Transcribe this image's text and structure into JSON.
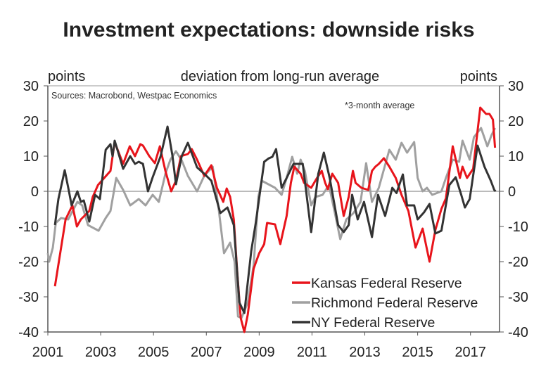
{
  "chart_data": {
    "type": "line",
    "title": "Investment expectations: downside risks",
    "ylabel_left": "points",
    "ylabel_center": "deviation from long-run average",
    "ylabel_right": "points",
    "source": "Sources: Macrobond, Westpac Economics",
    "annotation": "*3-month average",
    "xlim": [
      2001,
      2018.1
    ],
    "ylim": [
      -40,
      30
    ],
    "x_ticks": [
      2001,
      2003,
      2005,
      2007,
      2009,
      2011,
      2013,
      2015,
      2017
    ],
    "y_ticks": [
      30,
      20,
      10,
      0,
      -10,
      -20,
      -30,
      -40
    ],
    "legend_position": "bottom-right",
    "series": [
      {
        "name": "Kansas Federal Reserve",
        "color": "#e8141b",
        "points": [
          [
            2001.27,
            -27
          ],
          [
            2001.67,
            -8
          ],
          [
            2001.93,
            -4
          ],
          [
            2002.1,
            -10
          ],
          [
            2002.25,
            -8
          ],
          [
            2002.57,
            -5.6
          ],
          [
            2002.7,
            -1.6
          ],
          [
            2002.9,
            1.8
          ],
          [
            2003.37,
            5.8
          ],
          [
            2003.53,
            14
          ],
          [
            2003.85,
            7.8
          ],
          [
            2004.1,
            12.8
          ],
          [
            2004.3,
            10
          ],
          [
            2004.5,
            13.4
          ],
          [
            2004.6,
            13
          ],
          [
            2004.84,
            10
          ],
          [
            2005.05,
            8
          ],
          [
            2005.24,
            12.8
          ],
          [
            2005.45,
            5.8
          ],
          [
            2005.67,
            0
          ],
          [
            2005.85,
            3
          ],
          [
            2006.04,
            10
          ],
          [
            2006.3,
            10.6
          ],
          [
            2006.45,
            12
          ],
          [
            2006.65,
            9
          ],
          [
            2006.92,
            4.4
          ],
          [
            2007.19,
            7.4
          ],
          [
            2007.4,
            1
          ],
          [
            2007.64,
            -3
          ],
          [
            2007.77,
            0.8
          ],
          [
            2007.9,
            -1.6
          ],
          [
            2008.04,
            -8
          ],
          [
            2008.17,
            -23
          ],
          [
            2008.3,
            -36
          ],
          [
            2008.44,
            -40
          ],
          [
            2008.57,
            -35
          ],
          [
            2008.79,
            -22
          ],
          [
            2009.0,
            -17.6
          ],
          [
            2009.19,
            -15
          ],
          [
            2009.3,
            -9
          ],
          [
            2009.6,
            -9.4
          ],
          [
            2009.8,
            -15
          ],
          [
            2010.04,
            -7
          ],
          [
            2010.2,
            2.4
          ],
          [
            2010.33,
            7
          ],
          [
            2010.57,
            5
          ],
          [
            2010.7,
            2.4
          ],
          [
            2010.97,
            1
          ],
          [
            2011.19,
            3.8
          ],
          [
            2011.37,
            5.8
          ],
          [
            2011.5,
            2.4
          ],
          [
            2011.6,
            0.6
          ],
          [
            2011.77,
            5
          ],
          [
            2011.99,
            2.4
          ],
          [
            2012.2,
            -7
          ],
          [
            2012.39,
            -1.6
          ],
          [
            2012.55,
            5.8
          ],
          [
            2012.65,
            2.4
          ],
          [
            2012.87,
            1
          ],
          [
            2013.13,
            0.4
          ],
          [
            2013.27,
            5.8
          ],
          [
            2013.4,
            7
          ],
          [
            2013.53,
            7.8
          ],
          [
            2013.72,
            9.4
          ],
          [
            2013.93,
            7
          ],
          [
            2014.17,
            3.8
          ],
          [
            2014.39,
            -1
          ],
          [
            2014.65,
            -5.6
          ],
          [
            2014.92,
            -16
          ],
          [
            2015.19,
            -10.6
          ],
          [
            2015.45,
            -20
          ],
          [
            2015.67,
            -11
          ],
          [
            2015.9,
            -5
          ],
          [
            2016.07,
            -2
          ],
          [
            2016.33,
            12.8
          ],
          [
            2016.6,
            3.8
          ],
          [
            2016.7,
            7
          ],
          [
            2016.87,
            3.8
          ],
          [
            2017.1,
            6.4
          ],
          [
            2017.37,
            23.8
          ],
          [
            2017.59,
            22
          ],
          [
            2017.72,
            22
          ],
          [
            2017.85,
            20.4
          ],
          [
            2017.93,
            12.4
          ]
        ]
      },
      {
        "name": "Richmond Federal Reserve",
        "color": "#a0a0a0",
        "points": [
          [
            2001.0,
            -17.6
          ],
          [
            2001.05,
            -20
          ],
          [
            2001.19,
            -16
          ],
          [
            2001.3,
            -9
          ],
          [
            2001.5,
            -7.6
          ],
          [
            2001.77,
            -8
          ],
          [
            2002.12,
            -3
          ],
          [
            2002.3,
            -4
          ],
          [
            2002.52,
            -9.6
          ],
          [
            2002.92,
            -11.2
          ],
          [
            2003.19,
            -7.6
          ],
          [
            2003.37,
            -5.6
          ],
          [
            2003.59,
            3.8
          ],
          [
            2003.85,
            0.4
          ],
          [
            2004.12,
            -4
          ],
          [
            2004.44,
            -2.2
          ],
          [
            2004.7,
            -4
          ],
          [
            2004.97,
            -1
          ],
          [
            2005.2,
            -3
          ],
          [
            2005.45,
            5
          ],
          [
            2005.64,
            9
          ],
          [
            2005.85,
            11.4
          ],
          [
            2006.07,
            8.8
          ],
          [
            2006.3,
            4.4
          ],
          [
            2006.65,
            0
          ],
          [
            2006.92,
            4.4
          ],
          [
            2007.24,
            7
          ],
          [
            2007.45,
            -4
          ],
          [
            2007.67,
            -17.6
          ],
          [
            2007.9,
            -14.6
          ],
          [
            2008.07,
            -20
          ],
          [
            2008.2,
            -35.6
          ],
          [
            2008.33,
            -36
          ],
          [
            2008.57,
            -31.6
          ],
          [
            2008.79,
            -21
          ],
          [
            2008.97,
            -1.6
          ],
          [
            2009.1,
            3
          ],
          [
            2009.4,
            1.8
          ],
          [
            2009.6,
            1
          ],
          [
            2009.85,
            -1
          ],
          [
            2010.04,
            3.8
          ],
          [
            2010.25,
            9.8
          ],
          [
            2010.44,
            5
          ],
          [
            2010.57,
            9
          ],
          [
            2010.73,
            5.8
          ],
          [
            2010.97,
            -4
          ],
          [
            2011.13,
            -1.6
          ],
          [
            2011.4,
            -1
          ],
          [
            2011.64,
            1.8
          ],
          [
            2011.85,
            -5.6
          ],
          [
            2012.07,
            -13.6
          ],
          [
            2012.3,
            -8
          ],
          [
            2012.57,
            -6.2
          ],
          [
            2012.84,
            -3
          ],
          [
            2013.05,
            8
          ],
          [
            2013.27,
            -3
          ],
          [
            2013.53,
            1
          ],
          [
            2013.93,
            11.8
          ],
          [
            2014.17,
            9
          ],
          [
            2014.39,
            13.8
          ],
          [
            2014.6,
            11
          ],
          [
            2014.87,
            14
          ],
          [
            2015.0,
            3.8
          ],
          [
            2015.19,
            0
          ],
          [
            2015.35,
            1
          ],
          [
            2015.55,
            -1
          ],
          [
            2015.9,
            0
          ],
          [
            2016.07,
            3.8
          ],
          [
            2016.33,
            9
          ],
          [
            2016.57,
            8.4
          ],
          [
            2016.7,
            14.4
          ],
          [
            2016.97,
            9
          ],
          [
            2017.13,
            15.4
          ],
          [
            2017.4,
            18
          ],
          [
            2017.64,
            12.8
          ],
          [
            2017.8,
            16
          ],
          [
            2017.93,
            18
          ]
        ]
      },
      {
        "name": "NY Federal Reserve",
        "color": "#333333",
        "points": [
          [
            2001.27,
            -9.6
          ],
          [
            2001.4,
            -2.2
          ],
          [
            2001.64,
            6
          ],
          [
            2001.8,
            0
          ],
          [
            2001.9,
            -4
          ],
          [
            2002.12,
            0
          ],
          [
            2002.25,
            -3
          ],
          [
            2002.36,
            -2.6
          ],
          [
            2002.57,
            -8.6
          ],
          [
            2002.79,
            -1
          ],
          [
            2002.97,
            -2.2
          ],
          [
            2003.19,
            11.8
          ],
          [
            2003.37,
            13.4
          ],
          [
            2003.45,
            10
          ],
          [
            2003.53,
            14.4
          ],
          [
            2003.85,
            6.4
          ],
          [
            2004.12,
            10
          ],
          [
            2004.3,
            7.8
          ],
          [
            2004.44,
            8.4
          ],
          [
            2004.6,
            7.8
          ],
          [
            2004.79,
            0
          ],
          [
            2004.97,
            4
          ],
          [
            2005.27,
            10
          ],
          [
            2005.53,
            18.4
          ],
          [
            2005.72,
            10
          ],
          [
            2005.85,
            2
          ],
          [
            2006.07,
            10
          ],
          [
            2006.3,
            13.8
          ],
          [
            2006.65,
            6.8
          ],
          [
            2006.92,
            5
          ],
          [
            2007.19,
            3
          ],
          [
            2007.53,
            -6.2
          ],
          [
            2007.8,
            -4.6
          ],
          [
            2008.04,
            -9.6
          ],
          [
            2008.25,
            -31.6
          ],
          [
            2008.44,
            -34.6
          ],
          [
            2008.7,
            -17
          ],
          [
            2008.87,
            -9
          ],
          [
            2009.19,
            8.4
          ],
          [
            2009.37,
            9.4
          ],
          [
            2009.5,
            9.8
          ],
          [
            2009.64,
            12
          ],
          [
            2009.85,
            1
          ],
          [
            2010.04,
            3.8
          ],
          [
            2010.3,
            7.8
          ],
          [
            2010.65,
            7.8
          ],
          [
            2010.97,
            -11.6
          ],
          [
            2011.24,
            5
          ],
          [
            2011.45,
            11
          ],
          [
            2011.67,
            3.8
          ],
          [
            2011.99,
            -9.6
          ],
          [
            2012.2,
            -11.6
          ],
          [
            2012.39,
            -9.6
          ],
          [
            2012.52,
            -1
          ],
          [
            2012.73,
            -8
          ],
          [
            2012.97,
            -3
          ],
          [
            2013.27,
            -13
          ],
          [
            2013.5,
            -1
          ],
          [
            2013.77,
            -7
          ],
          [
            2014.04,
            1
          ],
          [
            2014.2,
            -0.5
          ],
          [
            2014.44,
            4.8
          ],
          [
            2014.6,
            -4
          ],
          [
            2014.87,
            -4
          ],
          [
            2015.0,
            -8
          ],
          [
            2015.24,
            -6
          ],
          [
            2015.45,
            -3.6
          ],
          [
            2015.67,
            -12
          ],
          [
            2015.9,
            -11.2
          ],
          [
            2016.2,
            1.8
          ],
          [
            2016.44,
            4
          ],
          [
            2016.65,
            -1
          ],
          [
            2016.79,
            -4.6
          ],
          [
            2016.97,
            -2.2
          ],
          [
            2017.27,
            13
          ],
          [
            2017.53,
            7
          ],
          [
            2017.77,
            3
          ],
          [
            2017.9,
            0.4
          ],
          [
            2017.95,
            0
          ]
        ]
      }
    ]
  }
}
